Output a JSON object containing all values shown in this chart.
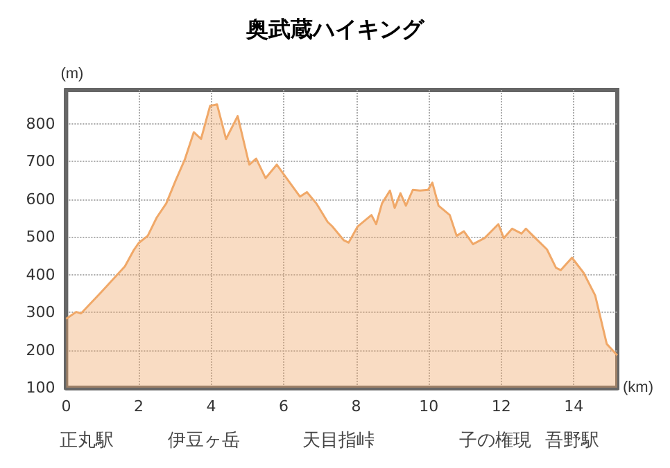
{
  "chart_data": {
    "type": "area",
    "title": "奥武蔵ハイキング",
    "xlabel": "(km)",
    "ylabel": "(m)",
    "annotations": [
      "正丸駅",
      "伊豆ヶ岳",
      "天目指峠",
      "子の権現",
      "吾野駅"
    ],
    "x": [
      0,
      0.28,
      0.41,
      0.98,
      1.62,
      1.87,
      2.0,
      2.25,
      2.5,
      2.76,
      3.02,
      3.27,
      3.52,
      3.72,
      3.97,
      4.16,
      4.41,
      4.73,
      5.05,
      5.24,
      5.5,
      5.81,
      6.13,
      6.45,
      6.64,
      6.9,
      7.21,
      7.34,
      7.66,
      7.79,
      8.04,
      8.42,
      8.55,
      8.71,
      8.93,
      9.06,
      9.22,
      9.37,
      9.56,
      9.76,
      9.98,
      10.1,
      10.27,
      10.58,
      10.77,
      10.97,
      11.22,
      11.54,
      11.92,
      12.07,
      12.3,
      12.56,
      12.68,
      12.94,
      13.26,
      13.51,
      13.64,
      13.95,
      14.27,
      14.59,
      14.91,
      15.2
    ],
    "series": [
      {
        "color": "#f0a868",
        "values": [
          283,
          301,
          297,
          355,
          422,
          466,
          484,
          503,
          552,
          589,
          650,
          705,
          778,
          760,
          848,
          852,
          760,
          821,
          692,
          708,
          656,
          692,
          649,
          607,
          619,
          589,
          540,
          528,
          491,
          485,
          528,
          558,
          534,
          589,
          623,
          577,
          616,
          583,
          625,
          623,
          625,
          644,
          583,
          558,
          503,
          515,
          481,
          497,
          534,
          497,
          522,
          509,
          522,
          497,
          467,
          418,
          412,
          445,
          405,
          345,
          216,
          186
        ]
      }
    ],
    "xlim": [
      0,
      15.2
    ],
    "xticks": [
      0,
      2,
      4,
      6,
      8,
      10,
      12,
      14
    ],
    "ylim": [
      100,
      890
    ],
    "yticks": [
      100,
      200,
      300,
      400,
      500,
      600,
      700,
      800
    ],
    "grid": true,
    "marker": "none",
    "line_style": "solid"
  }
}
